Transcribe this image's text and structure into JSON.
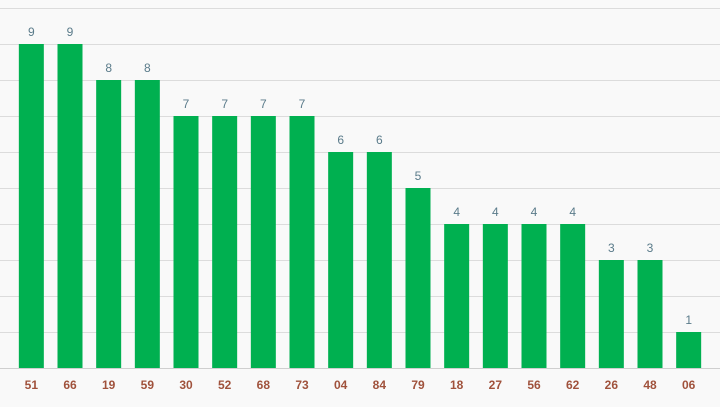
{
  "chart_data": {
    "type": "bar",
    "categories": [
      "51",
      "66",
      "19",
      "59",
      "30",
      "52",
      "68",
      "73",
      "04",
      "84",
      "79",
      "18",
      "27",
      "56",
      "62",
      "26",
      "48",
      "06"
    ],
    "values": [
      9,
      9,
      8,
      8,
      7,
      7,
      7,
      7,
      6,
      6,
      5,
      4,
      4,
      4,
      4,
      3,
      3,
      1
    ],
    "ylim": [
      0,
      10
    ],
    "grid": true,
    "colors": {
      "bar": "#00b050",
      "value_label": "#5a7b8a",
      "tick_label": "#a0523c",
      "grid": "#dcdcdc"
    }
  }
}
